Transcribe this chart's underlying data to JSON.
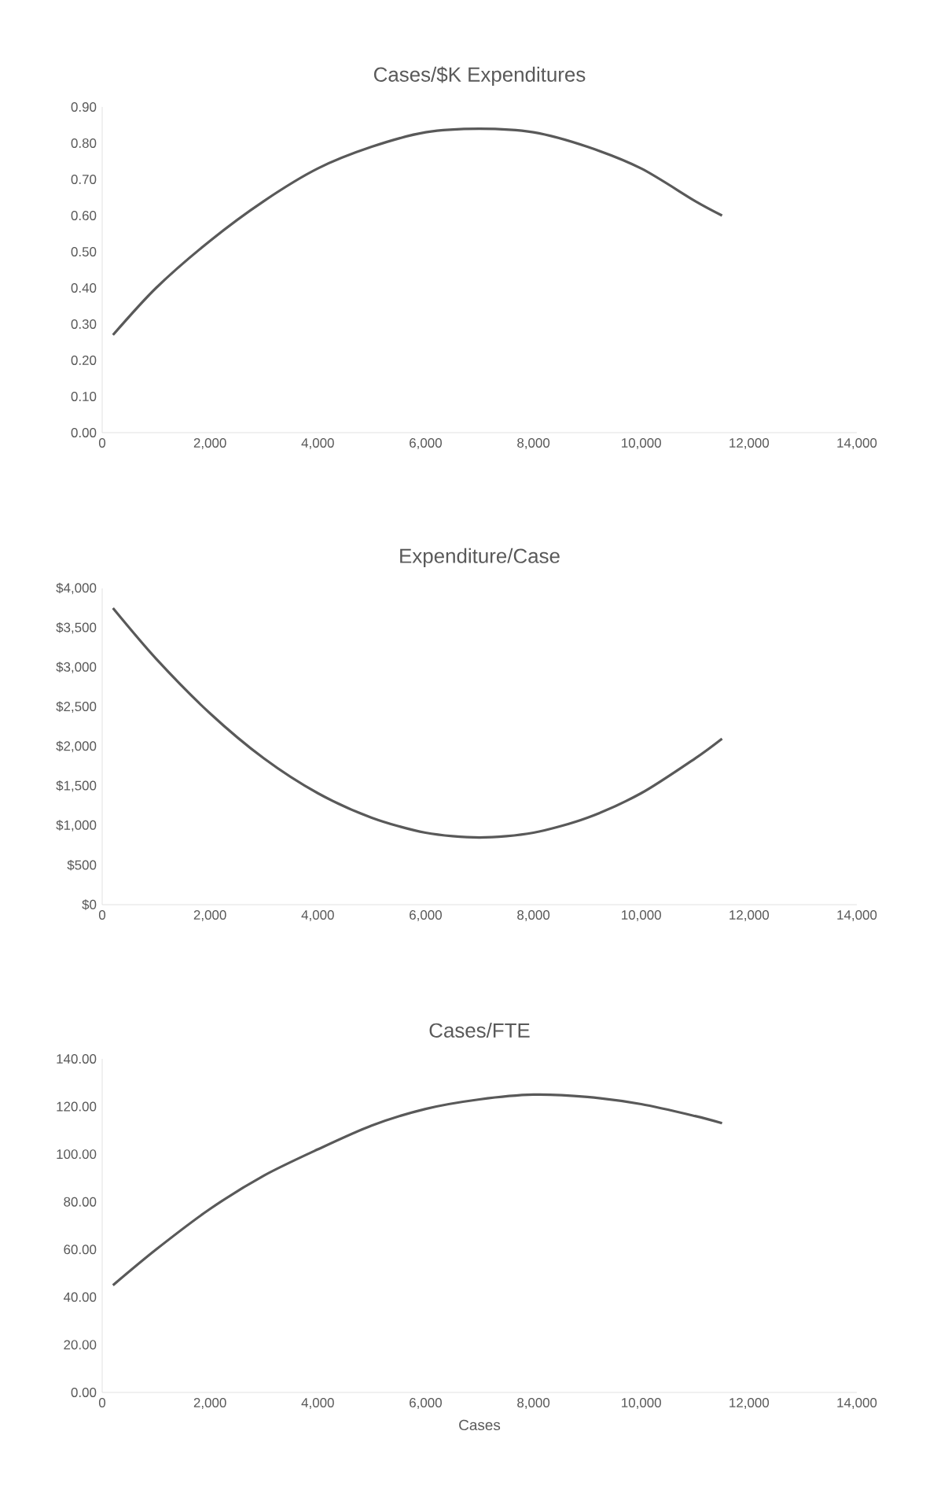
{
  "chart_data": [
    {
      "type": "line",
      "title": "Cases/$K Expenditures",
      "color": "#595959",
      "marker": "none",
      "x": [
        200,
        1000,
        2000,
        3000,
        4000,
        5000,
        6000,
        7000,
        8000,
        9000,
        10000,
        11000,
        11500
      ],
      "values": [
        0.27,
        0.4,
        0.53,
        0.64,
        0.73,
        0.79,
        0.83,
        0.84,
        0.83,
        0.79,
        0.73,
        0.64,
        0.6
      ],
      "xlim": [
        0,
        14000
      ],
      "ylim": [
        0,
        0.9
      ],
      "xticks": [
        0,
        {
          "value": 2000,
          "label": "2,000"
        },
        {
          "value": 4000,
          "label": "4,000"
        },
        {
          "value": 6000,
          "label": "6,000"
        },
        {
          "value": 8000,
          "label": "8,000"
        },
        {
          "value": 10000,
          "label": "10,000"
        },
        {
          "value": 12000,
          "label": "12,000"
        },
        {
          "value": 14000,
          "label": "14,000"
        }
      ],
      "yticks": [
        {
          "value": 0,
          "label": "0.00"
        },
        {
          "value": 0.1,
          "label": "0.10"
        },
        {
          "value": 0.2,
          "label": "0.20"
        },
        {
          "value": 0.3,
          "label": "0.30"
        },
        {
          "value": 0.4,
          "label": "0.40"
        },
        {
          "value": 0.5,
          "label": "0.50"
        },
        {
          "value": 0.6,
          "label": "0.60"
        },
        {
          "value": 0.7,
          "label": "0.70"
        },
        {
          "value": 0.8,
          "label": "0.80"
        },
        {
          "value": 0.9,
          "label": "0.90"
        }
      ]
    },
    {
      "type": "line",
      "title": "Expenditure/Case",
      "color": "#595959",
      "marker": "none",
      "x": [
        200,
        1000,
        2000,
        3000,
        4000,
        5000,
        6000,
        7000,
        8000,
        9000,
        10000,
        11000,
        11500
      ],
      "values": [
        3750,
        3110,
        2420,
        1850,
        1410,
        1100,
        910,
        850,
        910,
        1100,
        1410,
        1850,
        2100
      ],
      "xlim": [
        0,
        14000
      ],
      "ylim": [
        0,
        4000
      ],
      "xticks": [
        0,
        {
          "value": 2000,
          "label": "2,000"
        },
        {
          "value": 4000,
          "label": "4,000"
        },
        {
          "value": 6000,
          "label": "6,000"
        },
        {
          "value": 8000,
          "label": "8,000"
        },
        {
          "value": 10000,
          "label": "10,000"
        },
        {
          "value": 12000,
          "label": "12,000"
        },
        {
          "value": 14000,
          "label": "14,000"
        }
      ],
      "yticks": [
        {
          "value": 0,
          "label": "$0"
        },
        {
          "value": 500,
          "label": "$500"
        },
        {
          "value": 1000,
          "label": "$1,000"
        },
        {
          "value": 1500,
          "label": "$1,500"
        },
        {
          "value": 2000,
          "label": "$2,000"
        },
        {
          "value": 2500,
          "label": "$2,500"
        },
        {
          "value": 3000,
          "label": "$3,000"
        },
        {
          "value": 3500,
          "label": "$3,500"
        },
        {
          "value": 4000,
          "label": "$4,000"
        }
      ]
    },
    {
      "type": "line",
      "title": "Cases/FTE",
      "xlabel": "Cases",
      "color": "#595959",
      "marker": "none",
      "x": [
        200,
        1000,
        2000,
        3000,
        4000,
        5000,
        6000,
        7000,
        8000,
        9000,
        10000,
        11000,
        11500
      ],
      "values": [
        45,
        60,
        77,
        91,
        102,
        112,
        119,
        123,
        125,
        124,
        121,
        116,
        113
      ],
      "xlim": [
        0,
        14000
      ],
      "ylim": [
        0,
        140
      ],
      "xticks": [
        0,
        {
          "value": 2000,
          "label": "2,000"
        },
        {
          "value": 4000,
          "label": "4,000"
        },
        {
          "value": 6000,
          "label": "6,000"
        },
        {
          "value": 8000,
          "label": "8,000"
        },
        {
          "value": 10000,
          "label": "10,000"
        },
        {
          "value": 12000,
          "label": "12,000"
        },
        {
          "value": 14000,
          "label": "14,000"
        }
      ],
      "yticks": [
        {
          "value": 0,
          "label": "0.00"
        },
        {
          "value": 20,
          "label": "20.00"
        },
        {
          "value": 40,
          "label": "40.00"
        },
        {
          "value": 60,
          "label": "60.00"
        },
        {
          "value": 80,
          "label": "80.00"
        },
        {
          "value": 100,
          "label": "100.00"
        },
        {
          "value": 120,
          "label": "120.00"
        },
        {
          "value": 140,
          "label": "140.00"
        }
      ]
    }
  ]
}
